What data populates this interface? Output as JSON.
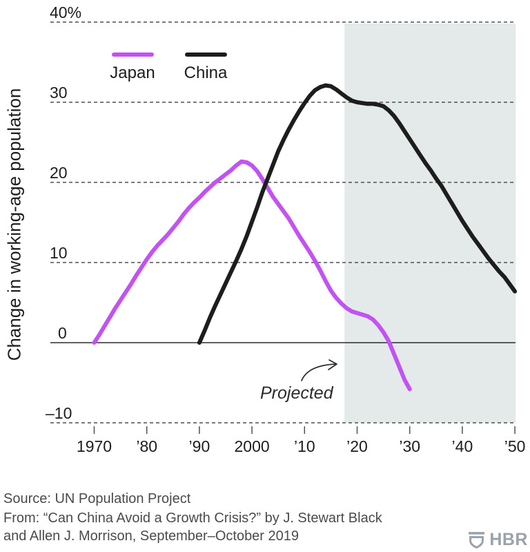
{
  "chart_data": {
    "type": "line",
    "title": "",
    "xlabel": "",
    "ylabel": "Change in working-age population",
    "unit": "%",
    "ylim": [
      -13,
      43
    ],
    "xlim": [
      1962,
      2050
    ],
    "grid": "dashed-horizontal",
    "legend_position": "top-left-inside",
    "y_ticks": [
      {
        "value": 40,
        "label": "40%"
      },
      {
        "value": 30,
        "label": "30"
      },
      {
        "value": 20,
        "label": "20"
      },
      {
        "value": 10,
        "label": "10"
      },
      {
        "value": 0,
        "label": "0"
      },
      {
        "value": -10,
        "label": "–10"
      }
    ],
    "x_ticks": [
      {
        "value": 1970,
        "label": "1970"
      },
      {
        "value": 1980,
        "label": "’80"
      },
      {
        "value": 1990,
        "label": "’90"
      },
      {
        "value": 2000,
        "label": "2000"
      },
      {
        "value": 2010,
        "label": "’10"
      },
      {
        "value": 2020,
        "label": "’20"
      },
      {
        "value": 2030,
        "label": "’30"
      },
      {
        "value": 2040,
        "label": "’40"
      },
      {
        "value": 2050,
        "label": "’50"
      }
    ],
    "projection": {
      "label": "Projected",
      "start_year": 2017.6,
      "end_year": 2050,
      "fill": "#e4e9ea"
    },
    "series": [
      {
        "name": "Japan",
        "color": "#c253f2",
        "points": [
          [
            1970,
            0
          ],
          [
            1971,
            1.0
          ],
          [
            1972,
            2.1
          ],
          [
            1973,
            3.2
          ],
          [
            1974,
            4.3
          ],
          [
            1975,
            5.3
          ],
          [
            1976,
            6.3
          ],
          [
            1977,
            7.3
          ],
          [
            1978,
            8.4
          ],
          [
            1979,
            9.4
          ],
          [
            1980,
            10.4
          ],
          [
            1981,
            11.3
          ],
          [
            1982,
            12.1
          ],
          [
            1983,
            12.8
          ],
          [
            1984,
            13.5
          ],
          [
            1985,
            14.3
          ],
          [
            1986,
            15.1
          ],
          [
            1987,
            16.0
          ],
          [
            1988,
            16.8
          ],
          [
            1989,
            17.5
          ],
          [
            1990,
            18.1
          ],
          [
            1991,
            18.8
          ],
          [
            1992,
            19.4
          ],
          [
            1993,
            20.0
          ],
          [
            1994,
            20.5
          ],
          [
            1995,
            21.0
          ],
          [
            1996,
            21.5
          ],
          [
            1997,
            22.1
          ],
          [
            1998,
            22.6
          ],
          [
            1999,
            22.5
          ],
          [
            2000,
            22.1
          ],
          [
            2001,
            21.4
          ],
          [
            2002,
            20.4
          ],
          [
            2003,
            19.3
          ],
          [
            2004,
            18.2
          ],
          [
            2005,
            17.3
          ],
          [
            2006,
            16.4
          ],
          [
            2007,
            15.5
          ],
          [
            2008,
            14.4
          ],
          [
            2009,
            13.3
          ],
          [
            2010,
            12.3
          ],
          [
            2011,
            11.3
          ],
          [
            2012,
            10.2
          ],
          [
            2013,
            9.0
          ],
          [
            2014,
            7.7
          ],
          [
            2015,
            6.5
          ],
          [
            2016,
            5.6
          ],
          [
            2017,
            4.9
          ],
          [
            2018,
            4.3
          ],
          [
            2019,
            3.9
          ],
          [
            2020,
            3.7
          ],
          [
            2021,
            3.5
          ],
          [
            2022,
            3.3
          ],
          [
            2023,
            2.9
          ],
          [
            2024,
            2.2
          ],
          [
            2025,
            1.3
          ],
          [
            2026,
            0.2
          ],
          [
            2027,
            -1.4
          ],
          [
            2028,
            -3.0
          ],
          [
            2029,
            -4.6
          ],
          [
            2030,
            -5.8
          ]
        ]
      },
      {
        "name": "China",
        "color": "#1d1d1b",
        "points": [
          [
            1990,
            0
          ],
          [
            1991,
            1.5
          ],
          [
            1992,
            3.1
          ],
          [
            1993,
            4.6
          ],
          [
            1994,
            6.0
          ],
          [
            1995,
            7.4
          ],
          [
            1996,
            8.8
          ],
          [
            1997,
            10.2
          ],
          [
            1998,
            11.7
          ],
          [
            1999,
            13.3
          ],
          [
            2000,
            15.1
          ],
          [
            2001,
            16.9
          ],
          [
            2002,
            18.8
          ],
          [
            2003,
            20.5
          ],
          [
            2004,
            22.2
          ],
          [
            2005,
            23.9
          ],
          [
            2006,
            25.3
          ],
          [
            2007,
            26.6
          ],
          [
            2008,
            27.8
          ],
          [
            2009,
            28.9
          ],
          [
            2010,
            29.9
          ],
          [
            2011,
            30.8
          ],
          [
            2012,
            31.5
          ],
          [
            2013,
            31.9
          ],
          [
            2014,
            32.1
          ],
          [
            2015,
            32.0
          ],
          [
            2016,
            31.6
          ],
          [
            2017,
            31.1
          ],
          [
            2018,
            30.6
          ],
          [
            2019,
            30.2
          ],
          [
            2020,
            30.0
          ],
          [
            2021,
            29.9
          ],
          [
            2022,
            29.8
          ],
          [
            2023,
            29.8
          ],
          [
            2024,
            29.7
          ],
          [
            2025,
            29.5
          ],
          [
            2026,
            29.0
          ],
          [
            2027,
            28.3
          ],
          [
            2028,
            27.4
          ],
          [
            2029,
            26.4
          ],
          [
            2030,
            25.4
          ],
          [
            2031,
            24.4
          ],
          [
            2032,
            23.4
          ],
          [
            2033,
            22.4
          ],
          [
            2034,
            21.5
          ],
          [
            2035,
            20.5
          ],
          [
            2036,
            19.6
          ],
          [
            2037,
            18.5
          ],
          [
            2038,
            17.4
          ],
          [
            2039,
            16.3
          ],
          [
            2040,
            15.2
          ],
          [
            2041,
            14.2
          ],
          [
            2042,
            13.2
          ],
          [
            2043,
            12.3
          ],
          [
            2044,
            11.4
          ],
          [
            2045,
            10.5
          ],
          [
            2046,
            9.7
          ],
          [
            2047,
            8.9
          ],
          [
            2048,
            8.2
          ],
          [
            2049,
            7.3
          ],
          [
            2050,
            6.4
          ]
        ]
      }
    ]
  },
  "legend": {
    "items": [
      {
        "label": "Japan",
        "color": "#c253f2"
      },
      {
        "label": "China",
        "color": "#1d1d1b"
      }
    ]
  },
  "annotation": {
    "projected_label": "Projected"
  },
  "footer": {
    "source": "Source: UN Population Project",
    "attribution_line1": "From: “Can China Avoid a Growth Crisis?” by J. Stewart Black",
    "attribution_line2": "and Allen J. Morrison, September–October 2019",
    "logo_text": "HBR"
  },
  "colors": {
    "japan_line": "#c253f2",
    "china_line": "#1d1d1b",
    "projection_fill": "#e4e9ea",
    "gridline": "#4f4f4f",
    "zero_axis": "#2b2b2b",
    "tick_text": "#1d1d1b",
    "footer_text": "#4b4b4b",
    "logo": "#9aa2ab"
  }
}
